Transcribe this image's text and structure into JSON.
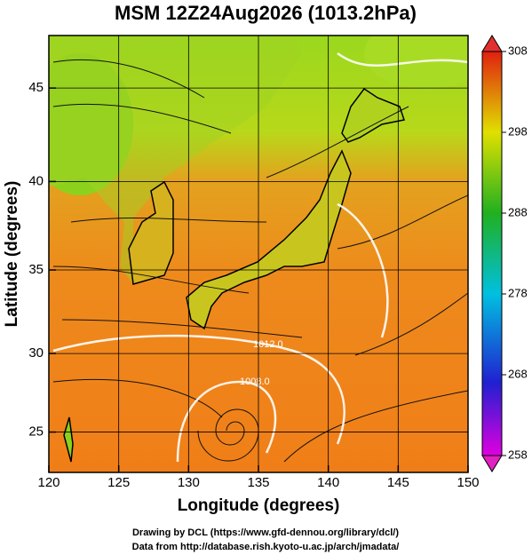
{
  "chart_data": {
    "type": "map",
    "title": "MSM 12Z24Aug2026 (1013.2hPa)",
    "x_label": "Longitude (degrees)",
    "y_label": "Latitude  (degrees)",
    "xlim": [
      120,
      150
    ],
    "xticks": [
      120,
      125,
      130,
      135,
      140,
      145,
      150
    ],
    "ylim": [
      22.3,
      47.7
    ],
    "yticks": [
      25,
      30,
      35,
      40,
      45
    ],
    "colorbar": {
      "lim": [
        258,
        308
      ],
      "ticks": [
        258,
        268,
        278,
        288,
        298,
        308
      ]
    },
    "contour_labels": [
      "1012.0",
      "1008.0"
    ],
    "credits": [
      "Drawing by DCL (https://www.gfd-dennou.org/library/dcl/)",
      "Data from http://database.rish.kyoto-u.ac.jp/arch/jmadata/"
    ]
  }
}
